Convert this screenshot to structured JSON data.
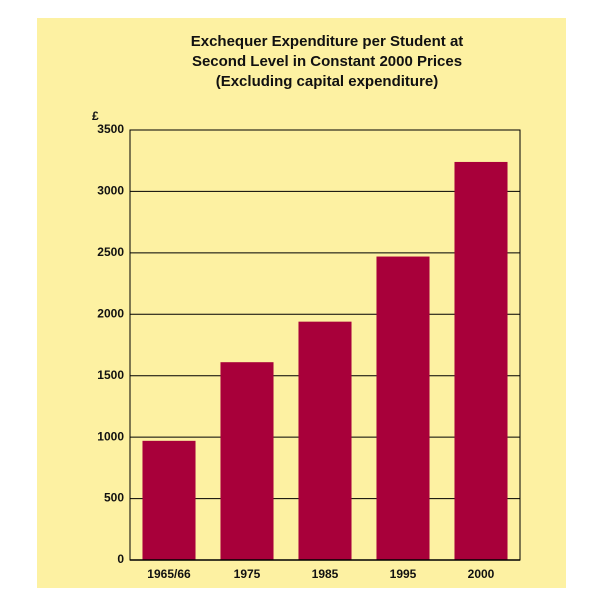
{
  "chart_data": {
    "type": "bar",
    "title": [
      "Exchequer Expenditure per Student at",
      "Second Level in Constant 2000 Prices",
      "(Excluding capital expenditure)"
    ],
    "y_label": "£",
    "categories": [
      "1965/66",
      "1975",
      "1985",
      "1995",
      "2000"
    ],
    "values": [
      970,
      1610,
      1940,
      2470,
      3240
    ],
    "color": "#a8003a",
    "ylim": [
      0,
      3500
    ],
    "yticks": [
      0,
      500,
      1000,
      1500,
      2000,
      2500,
      3000,
      3500
    ],
    "grid": true
  }
}
